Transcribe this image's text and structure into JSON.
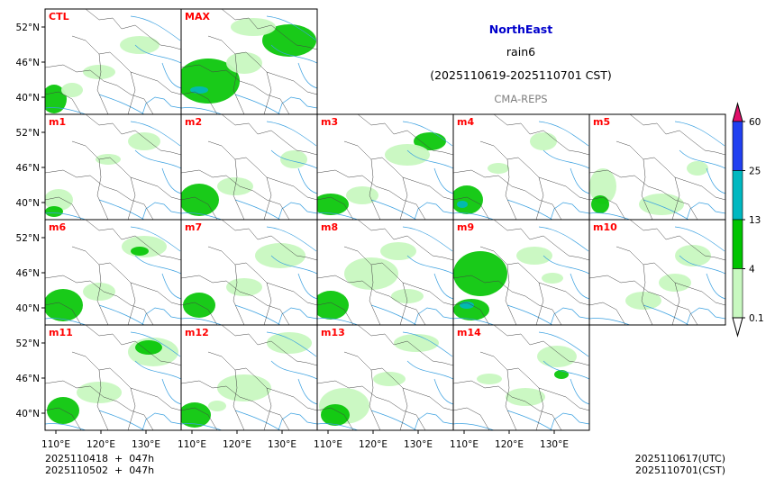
{
  "header": {
    "region": "NorthEast",
    "variable": "rain6",
    "period": "(2025110619-2025110701 CST)",
    "source": "CMA-REPS"
  },
  "panels": [
    {
      "label": "CTL"
    },
    {
      "label": "MAX"
    },
    {
      "label": "m1"
    },
    {
      "label": "m2"
    },
    {
      "label": "m3"
    },
    {
      "label": "m4"
    },
    {
      "label": "m5"
    },
    {
      "label": "m6"
    },
    {
      "label": "m7"
    },
    {
      "label": "m8"
    },
    {
      "label": "m9"
    },
    {
      "label": "m10"
    },
    {
      "label": "m11"
    },
    {
      "label": "m12"
    },
    {
      "label": "m13"
    },
    {
      "label": "m14"
    }
  ],
  "axes": {
    "lat_ticks": [
      "52°N",
      "46°N",
      "40°N"
    ],
    "lon_ticks": [
      "110°E",
      "120°E",
      "130°E"
    ]
  },
  "colorbar": {
    "levels": [
      "0.1",
      "4",
      "13",
      "25",
      "60"
    ],
    "colors": [
      "#c8f8c0",
      "#00c400",
      "#00b8c0",
      "#2040f0",
      "#e0106a"
    ]
  },
  "footer": {
    "init_line1": "2025110418  +  047h",
    "init_line2": "2025110502  +  047h",
    "valid_utc": "2025110617(UTC)",
    "valid_cst": "2025110701(CST)"
  },
  "colors": {
    "panel_label": "#ff0000",
    "region_title": "#0000cc",
    "source_text": "#808080",
    "river": "#3aa0e0",
    "border": "#444444"
  }
}
